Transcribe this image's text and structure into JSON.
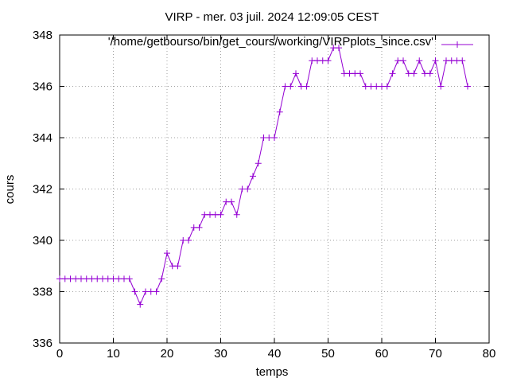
{
  "chart_data": {
    "type": "line",
    "title": "VIRP - mer. 03 juil. 2024 12:09:05 CEST",
    "xlabel": "temps",
    "ylabel": "cours",
    "xlim": [
      0,
      80
    ],
    "ylim": [
      336,
      348
    ],
    "xticks": [
      0,
      10,
      20,
      30,
      40,
      50,
      60,
      70,
      80
    ],
    "yticks": [
      336,
      338,
      340,
      342,
      344,
      346,
      348
    ],
    "grid": true,
    "legend_position": "top-right",
    "series": [
      {
        "name": "'/home/getbourso/bin/get_cours/working/VIRPplots_since.csv'",
        "color": "#9400d3",
        "marker": "plus",
        "x": [
          0,
          1,
          2,
          3,
          4,
          5,
          6,
          7,
          8,
          9,
          10,
          11,
          12,
          13,
          14,
          15,
          16,
          17,
          18,
          19,
          20,
          21,
          22,
          23,
          24,
          25,
          26,
          27,
          28,
          29,
          30,
          31,
          32,
          33,
          34,
          35,
          36,
          37,
          38,
          39,
          40,
          41,
          42,
          43,
          44,
          45,
          46,
          47,
          48,
          49,
          50,
          51,
          52,
          53,
          54,
          55,
          56,
          57,
          58,
          59,
          60,
          61,
          62,
          63,
          64,
          65,
          66,
          67,
          68,
          69,
          70,
          71,
          72,
          73,
          74,
          75,
          76
        ],
        "y": [
          338.5,
          338.5,
          338.5,
          338.5,
          338.5,
          338.5,
          338.5,
          338.5,
          338.5,
          338.5,
          338.5,
          338.5,
          338.5,
          338.5,
          338,
          337.5,
          338,
          338,
          338,
          338.5,
          339.5,
          339,
          339,
          340,
          340,
          340.5,
          340.5,
          341,
          341,
          341,
          341,
          341.5,
          341.5,
          341,
          342,
          342,
          342.5,
          343,
          344,
          344,
          344,
          345,
          346,
          346,
          346.5,
          346,
          346,
          347,
          347,
          347,
          347,
          347.5,
          347.5,
          346.5,
          346.5,
          346.5,
          346.5,
          346,
          346,
          346,
          346,
          346,
          346.5,
          347,
          347,
          346.5,
          346.5,
          347,
          346.5,
          346.5,
          347,
          346,
          347,
          347,
          347,
          347,
          346
        ]
      }
    ]
  }
}
